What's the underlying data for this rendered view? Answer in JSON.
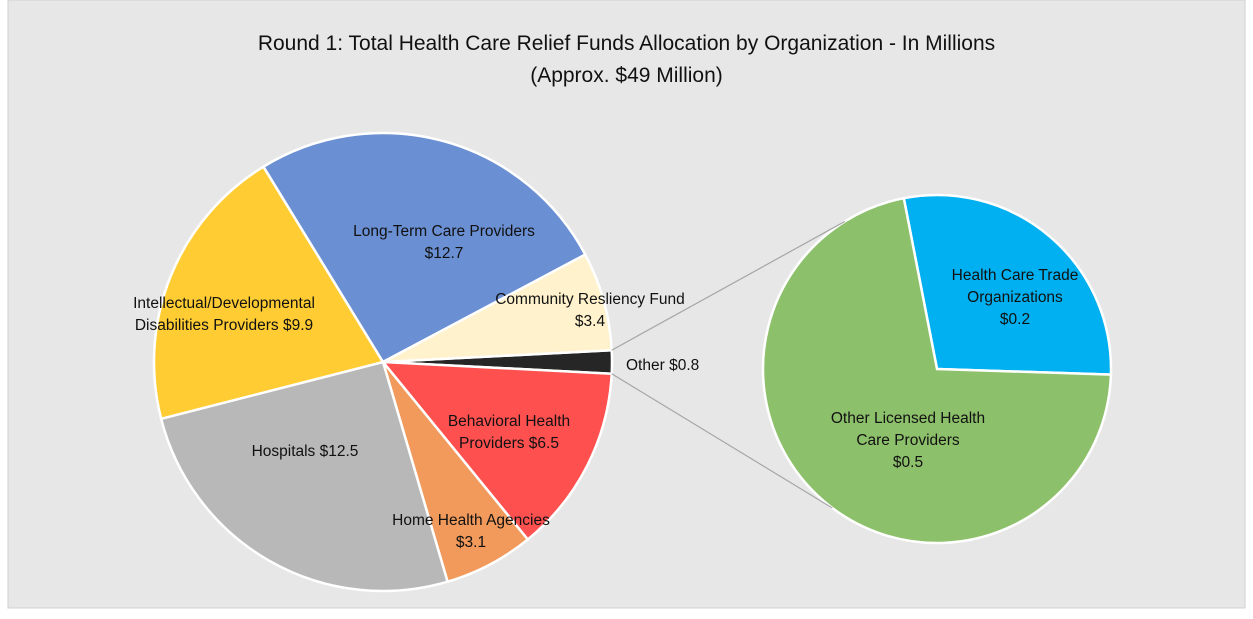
{
  "chart_data": {
    "type": "pie-of-pie",
    "title": "Round 1: Total Health Care Relief Funds Allocation by Organization - In Millions",
    "subtitle": "(Approx. $49 Million)",
    "categories": [
      "Other",
      "Behavioral Health Providers",
      "Home Health Agencies",
      "Hospitals",
      "Intellectual/Developmental Disabilities Providers",
      "Long-Term Care Providers",
      "Community Resliency Fund"
    ],
    "values": [
      0.8,
      6.5,
      3.1,
      12.5,
      9.9,
      12.7,
      3.4
    ],
    "value_labels": [
      "$0.8",
      "$6.5",
      "$3.1",
      "$12.5",
      "$9.9",
      "$12.7",
      "$3.4"
    ],
    "colors": [
      "#262626",
      "#ff5050",
      "#f19a5c",
      "#b8b8b8",
      "#ffcd33",
      "#6a8fd3",
      "#fff2cc"
    ],
    "secondary": {
      "categories": [
        "Health Care Trade Organizations",
        "Other Licensed Health Care Providers"
      ],
      "values": [
        0.2,
        0.5
      ],
      "value_labels": [
        "$0.2",
        "$0.5"
      ],
      "colors": [
        "#00b0f0",
        "#8dc06a"
      ]
    }
  }
}
